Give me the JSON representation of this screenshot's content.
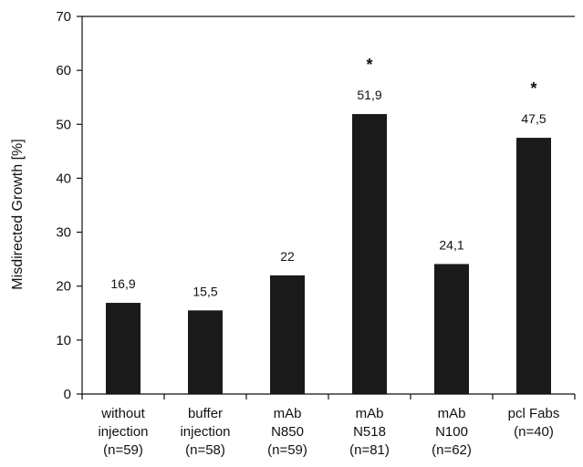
{
  "chart_data": {
    "type": "bar",
    "title": "",
    "xlabel": "",
    "ylabel": "Misdirected Growth [%]",
    "ylim": [
      0,
      70
    ],
    "yticks": [
      0,
      10,
      20,
      30,
      40,
      50,
      60,
      70
    ],
    "grid": false,
    "legend": false,
    "categories": [
      [
        "without",
        "injection",
        "(n=59)"
      ],
      [
        "buffer",
        "injection",
        "(n=58)"
      ],
      [
        "mAb",
        "N850",
        "(n=59)"
      ],
      [
        "mAb",
        "N518",
        "(n=81)"
      ],
      [
        "mAb",
        "N100",
        "(n=62)"
      ],
      [
        "pcl Fabs",
        "(n=40)"
      ]
    ],
    "values": [
      16.9,
      15.5,
      22,
      51.9,
      24.1,
      47.5
    ],
    "data_labels": [
      "16,9",
      "15,5",
      "22",
      "51,9",
      "24,1",
      "47,5"
    ],
    "significance": [
      "",
      "",
      "",
      "*",
      "",
      "*"
    ],
    "bar_color": "#1a1a1a"
  }
}
